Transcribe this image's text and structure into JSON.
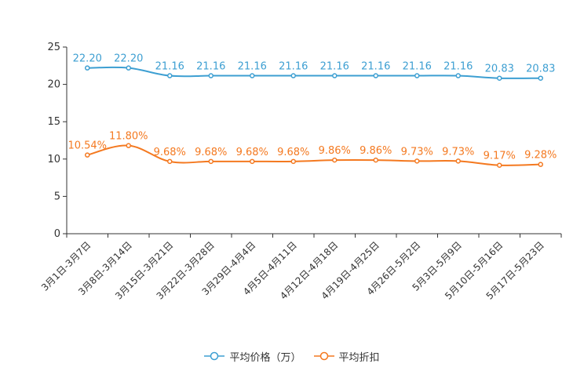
{
  "chart_data": {
    "type": "line",
    "categories": [
      "3月1日-3月7日",
      "3月8日-3月14日",
      "3月15日-3月21日",
      "3月22日-3月28日",
      "3月29日-4月4日",
      "4月5日-4月11日",
      "4月12日-4月18日",
      "4月19日-4月25日",
      "4月26日-5月2日",
      "5月3日-5月9日",
      "5月10日-5月16日",
      "5月17日-5月23日"
    ],
    "series": [
      {
        "name": "平均价格（万）",
        "color": "#3d9fd2",
        "values": [
          22.2,
          22.2,
          21.16,
          21.16,
          21.16,
          21.16,
          21.16,
          21.16,
          21.16,
          21.16,
          20.83,
          20.83
        ],
        "labels": [
          "22.20",
          "22.20",
          "21.16",
          "21.16",
          "21.16",
          "21.16",
          "21.16",
          "21.16",
          "21.16",
          "21.16",
          "20.83",
          "20.83"
        ]
      },
      {
        "name": "平均折扣",
        "color": "#f47920",
        "values": [
          10.54,
          11.8,
          9.68,
          9.68,
          9.68,
          9.68,
          9.86,
          9.86,
          9.73,
          9.73,
          9.17,
          9.28
        ],
        "labels": [
          "10.54%",
          "11.80%",
          "9.68%",
          "9.68%",
          "9.68%",
          "9.68%",
          "9.86%",
          "9.86%",
          "9.73%",
          "9.73%",
          "9.17%",
          "9.28%"
        ]
      }
    ],
    "ylim": [
      0,
      25
    ],
    "yticks": [
      "0",
      "5",
      "10",
      "15",
      "20",
      "25"
    ],
    "title": "",
    "xlabel": "",
    "ylabel": "",
    "legend_position": "bottom-center"
  }
}
